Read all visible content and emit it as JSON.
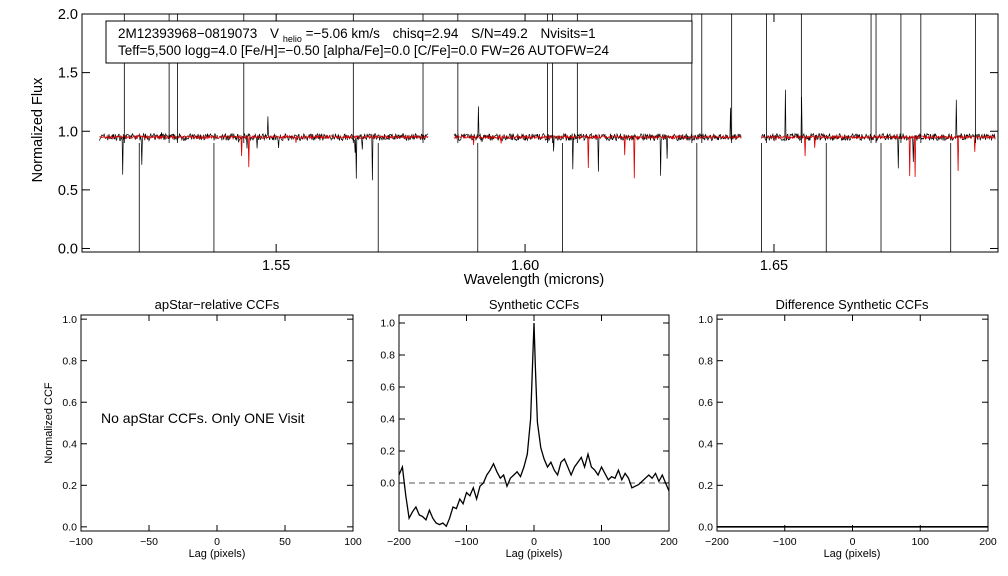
{
  "chart_data": [
    {
      "type": "line",
      "id": "spectrum",
      "xlabel": "Wavelength (microns)",
      "ylabel": "Normalized Flux",
      "xlim": [
        1.511,
        1.695
      ],
      "ylim": [
        -0.03,
        2.0
      ],
      "xticks": [
        1.55,
        1.6,
        1.65
      ],
      "xtick_labels": [
        "1.55",
        "1.60",
        "1.65"
      ],
      "yticks": [
        0.0,
        0.5,
        1.0,
        1.5,
        2.0
      ],
      "ytick_labels": [
        "0.0",
        "0.5",
        "1.0",
        "1.5",
        "2.0"
      ],
      "detector_chips": [
        [
          1.5145,
          1.5805
        ],
        [
          1.5857,
          1.6435
        ],
        [
          1.6475,
          1.6945
        ]
      ],
      "series": [
        {
          "name": "observed spectrum",
          "color": "#000000",
          "level": 0.95,
          "noise": 0.03
        },
        {
          "name": "synthetic model",
          "color": "#dd0000",
          "level": 0.95,
          "noise": 0.012
        }
      ],
      "sky_lines": [
        1.5195,
        1.5225,
        1.5285,
        1.5302,
        1.5375,
        1.5435,
        1.5655,
        1.5705,
        1.5795,
        1.5865,
        1.5905,
        1.6045,
        1.6055,
        1.6075,
        1.6105,
        1.6335,
        1.6345,
        1.6355,
        1.6415,
        1.6475,
        1.6485,
        1.6555,
        1.6605,
        1.6695,
        1.6705,
        1.6715,
        1.6755,
        1.6795,
        1.6855,
        1.6905
      ],
      "legend": {
        "line1": {
          "id": "2M12393968−0819073",
          "v_prefix": "V",
          "v_sub": "helio",
          "v_value": "=−5.06 km/s",
          "chisq": "chisq=2.94",
          "sn": "S/N=49.2",
          "nvisits": "Nvisits=1"
        },
        "line2": "Teff=5,500 logg=4.0 [Fe/H]=−0.50 [alpha/Fe]=0.0 [C/Fe]=0.0 FW=26 AUTOFW=24"
      }
    },
    {
      "type": "line",
      "id": "apstar_ccf",
      "title": "apStar−relative CCFs",
      "xlabel": "Lag (pixels)",
      "ylabel": "Normalized CCF",
      "xlim": [
        -100,
        100
      ],
      "ylim": [
        -0.02,
        1.02
      ],
      "xticks": [
        -100,
        -50,
        0,
        50,
        100
      ],
      "xtick_labels": [
        "−100",
        "−50",
        "0",
        "50",
        "100"
      ],
      "yticks": [
        0.0,
        0.2,
        0.4,
        0.6,
        0.8,
        1.0
      ],
      "ytick_labels": [
        "0.0",
        "0.2",
        "0.4",
        "0.6",
        "0.8",
        "1.0"
      ],
      "annotation": "No apStar CCFs.  Only ONE Visit",
      "series": []
    },
    {
      "type": "line",
      "id": "synthetic_ccf",
      "title": "Synthetic CCFs",
      "xlabel": "Lag (pixels)",
      "ylabel": "",
      "xlim": [
        -200,
        200
      ],
      "ylim": [
        -0.3,
        1.05
      ],
      "xticks": [
        -200,
        -100,
        0,
        100,
        200
      ],
      "xtick_labels": [
        "−200",
        "−100",
        "0",
        "100",
        "200"
      ],
      "yticks": [
        0.0,
        0.2,
        0.4,
        0.6,
        0.8,
        1.0
      ],
      "ytick_labels": [
        "0.0",
        "0.2",
        "0.4",
        "0.6",
        "0.8",
        "1.0"
      ],
      "zero_line": 0.0,
      "series": [
        {
          "name": "synthetic CCF",
          "x": [
            -200,
            -195,
            -190,
            -185,
            -180,
            -175,
            -170,
            -165,
            -160,
            -155,
            -150,
            -145,
            -140,
            -135,
            -130,
            -125,
            -120,
            -115,
            -110,
            -105,
            -100,
            -95,
            -90,
            -85,
            -80,
            -75,
            -70,
            -65,
            -60,
            -55,
            -50,
            -45,
            -40,
            -35,
            -30,
            -25,
            -20,
            -15,
            -10,
            -5,
            -2,
            0,
            2,
            5,
            10,
            15,
            20,
            25,
            30,
            35,
            40,
            45,
            50,
            55,
            60,
            65,
            70,
            75,
            80,
            85,
            90,
            95,
            100,
            105,
            110,
            115,
            120,
            125,
            130,
            135,
            140,
            145,
            150,
            155,
            160,
            165,
            170,
            175,
            180,
            185,
            190,
            195,
            200
          ],
          "y": [
            0.05,
            0.1,
            -0.08,
            -0.22,
            -0.18,
            -0.15,
            -0.2,
            -0.21,
            -0.23,
            -0.17,
            -0.22,
            -0.25,
            -0.26,
            -0.25,
            -0.27,
            -0.22,
            -0.15,
            -0.16,
            -0.1,
            -0.13,
            -0.06,
            -0.08,
            -0.03,
            -0.1,
            -0.02,
            0.0,
            0.05,
            0.08,
            0.12,
            0.07,
            0.03,
            0.05,
            -0.02,
            0.03,
            0.05,
            0.07,
            0.04,
            0.1,
            0.18,
            0.4,
            0.75,
            1.0,
            0.72,
            0.38,
            0.22,
            0.15,
            0.1,
            0.13,
            0.08,
            0.05,
            0.13,
            0.15,
            0.1,
            0.05,
            0.1,
            0.13,
            0.16,
            0.1,
            0.18,
            0.1,
            0.08,
            0.05,
            0.1,
            0.06,
            0.02,
            0.04,
            0.03,
            0.08,
            0.02,
            0.06,
            0.03,
            -0.03,
            -0.02,
            -0.01,
            0.01,
            0.03,
            0.05,
            0.03,
            0.06,
            0.01,
            0.05,
            0.0,
            -0.05
          ]
        }
      ]
    },
    {
      "type": "line",
      "id": "difference_ccf",
      "title": "Difference Synthetic CCFs",
      "xlabel": "Lag (pixels)",
      "ylabel": "",
      "xlim": [
        -200,
        200
      ],
      "ylim": [
        -0.02,
        1.02
      ],
      "xticks": [
        -200,
        -100,
        0,
        100,
        200
      ],
      "xtick_labels": [
        "−200",
        "−100",
        "0",
        "100",
        "200"
      ],
      "yticks": [
        0.0,
        0.2,
        0.4,
        0.6,
        0.8,
        1.0
      ],
      "ytick_labels": [
        "0.0",
        "0.2",
        "0.4",
        "0.6",
        "0.8",
        "1.0"
      ],
      "series": [
        {
          "name": "difference CCF",
          "x": [
            -200,
            200
          ],
          "y": [
            0.0,
            0.0
          ]
        }
      ]
    }
  ]
}
